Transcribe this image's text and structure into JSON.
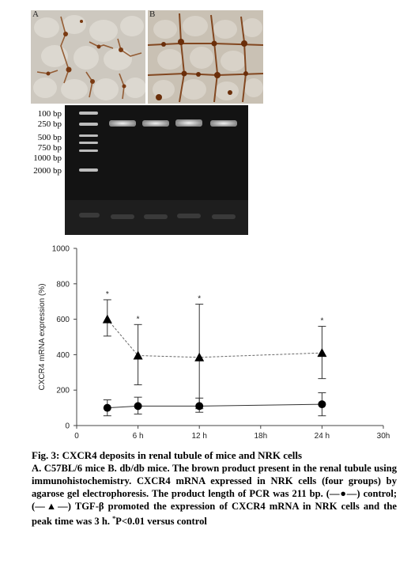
{
  "panels": {
    "a_label": "A",
    "b_label": "B"
  },
  "gel": {
    "ladder_labels": [
      "100 bp",
      "250 bp",
      "500 bp",
      "750 bp",
      "1000 bp",
      "2000 bp"
    ]
  },
  "chart_data": {
    "type": "line",
    "ylabel": "CXCR4 mRNA expression (%)",
    "xlabel": "",
    "x_ticks": [
      "0",
      "6 h",
      "12 h",
      "18h",
      "24 h",
      "30h"
    ],
    "x_tick_values": [
      0,
      6,
      12,
      18,
      24,
      30
    ],
    "y_ticks": [
      "0",
      "200",
      "400",
      "600",
      "800",
      "1000"
    ],
    "xlim": [
      0,
      30
    ],
    "ylim": [
      0,
      1000
    ],
    "series": [
      {
        "marker": "triangle",
        "line_style": "dashed",
        "x": [
          3,
          6,
          12,
          24
        ],
        "y": [
          600,
          395,
          385,
          410
        ],
        "err_upper": [
          710,
          570,
          685,
          560
        ],
        "err_lower": [
          505,
          230,
          95,
          265
        ],
        "significance": [
          "*",
          "*",
          "*",
          "*"
        ]
      },
      {
        "marker": "circle",
        "line_style": "solid",
        "x": [
          3,
          6,
          12,
          24
        ],
        "y": [
          100,
          110,
          110,
          120
        ],
        "err_upper": [
          145,
          160,
          155,
          185
        ],
        "err_lower": [
          55,
          65,
          75,
          55
        ]
      }
    ]
  },
  "caption": {
    "title": "Fig. 3: CXCR4 deposits in renal tubule of mice and NRK cells",
    "body_1": "A. C57BL/6 mice B. db/db mice. The brown product present in the renal tubule using immunohistochemistry. CXCR4 mRNA expressed in NRK cells (four groups) by agarose gel electrophoresis. The product length of PCR was 211 bp. (",
    "control_symbol": "—●—",
    "body_2": ") control; (",
    "tgf_symbol": "—▲—",
    "body_3": ") TGF-β promoted the expression of CXCR4 mRNA in NRK cells and the peak time was 3 h. ",
    "sig_mark": "*",
    "body_4": "P<0.01 versus control"
  }
}
